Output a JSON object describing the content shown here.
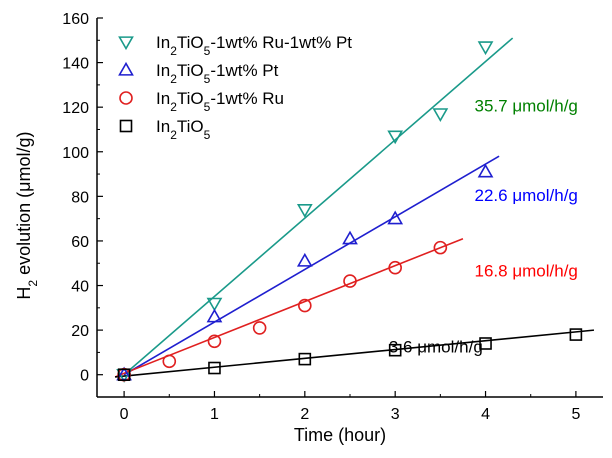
{
  "chart_data": {
    "type": "scatter",
    "title": "",
    "xlabel": "Time (hour)",
    "ylabel": {
      "pre": "H",
      "sub": "2",
      "post": " evolution (μmol/g)"
    },
    "xlim": [
      -0.3,
      5.3
    ],
    "ylim": [
      -10,
      160
    ],
    "x_ticks": [
      0,
      1,
      2,
      3,
      4,
      5
    ],
    "y_ticks": [
      0,
      20,
      40,
      60,
      80,
      100,
      120,
      140,
      160
    ],
    "grid": false,
    "legend_position": "top-left",
    "series": [
      {
        "name_parts": [
          [
            "In",
            ""
          ],
          [
            "2",
            "sub"
          ],
          [
            "TiO",
            ""
          ],
          [
            "5",
            "sub"
          ],
          [
            "-1wt% Ru-1wt% Pt",
            ""
          ]
        ],
        "color": "#1a9a8a",
        "marker": "triangle-down",
        "rate_label": "35.7 μmol/h/g",
        "rate_color": "#008000",
        "rate_anchor": [
          4.45,
          118
        ],
        "x": [
          0,
          1,
          2,
          3,
          3.5,
          4
        ],
        "y": [
          0,
          32,
          74,
          107,
          117,
          147
        ],
        "fit": {
          "x0": 0,
          "y0": 0,
          "x1": 4.3,
          "y1": 151
        }
      },
      {
        "name_parts": [
          [
            "In",
            ""
          ],
          [
            "2",
            "sub"
          ],
          [
            "TiO",
            ""
          ],
          [
            "5",
            "sub"
          ],
          [
            "-1wt% Pt",
            ""
          ]
        ],
        "color": "#1f1fcf",
        "marker": "triangle-up",
        "rate_label": "22.6 μmol/h/g",
        "rate_color": "#0000ff",
        "rate_anchor": [
          4.45,
          78
        ],
        "x": [
          0,
          1,
          2,
          2.5,
          3,
          4
        ],
        "y": [
          0,
          26,
          51,
          61,
          70,
          91
        ],
        "fit": {
          "x0": 0,
          "y0": 0,
          "x1": 4.15,
          "y1": 98
        }
      },
      {
        "name_parts": [
          [
            "In",
            ""
          ],
          [
            "2",
            "sub"
          ],
          [
            "TiO",
            ""
          ],
          [
            "5",
            "sub"
          ],
          [
            "-1wt% Ru",
            ""
          ]
        ],
        "color": "#e02020",
        "marker": "circle",
        "rate_label": "16.8 μmol/h/g",
        "rate_color": "#ff0000",
        "rate_anchor": [
          4.45,
          44
        ],
        "x": [
          0,
          0.5,
          1,
          1.5,
          2,
          2.5,
          3,
          3.5
        ],
        "y": [
          0,
          6,
          15,
          21,
          31,
          42,
          48,
          57
        ],
        "fit": {
          "x0": -0.1,
          "y0": -1,
          "x1": 3.75,
          "y1": 61
        }
      },
      {
        "name_parts": [
          [
            "In",
            ""
          ],
          [
            "2",
            "sub"
          ],
          [
            "TiO",
            ""
          ],
          [
            "5",
            "sub"
          ]
        ],
        "color": "#000000",
        "marker": "square",
        "rate_label": "3.6 μmol/h/g",
        "rate_color": "#000000",
        "rate_anchor": [
          3.45,
          10
        ],
        "x": [
          0,
          1,
          2,
          3,
          4,
          5
        ],
        "y": [
          0,
          3,
          7,
          11,
          14,
          18
        ],
        "fit": {
          "x0": -0.1,
          "y0": -1,
          "x1": 5.2,
          "y1": 20
        }
      }
    ]
  }
}
